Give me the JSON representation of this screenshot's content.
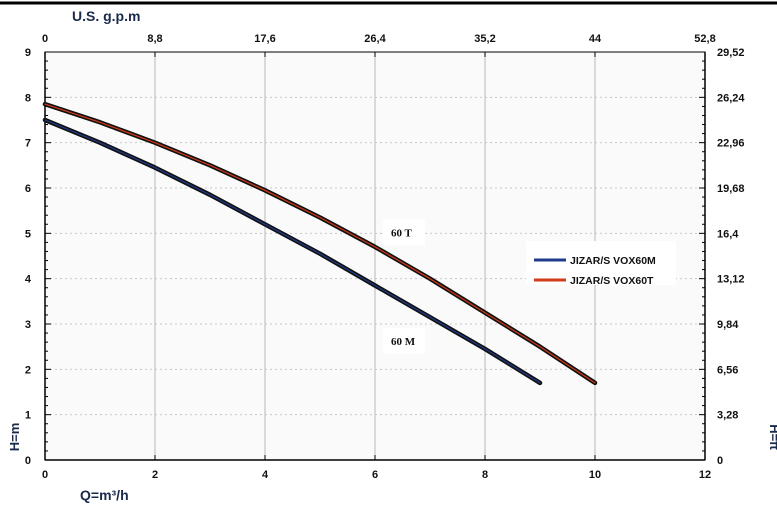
{
  "chart_data": {
    "type": "line",
    "x_axis": {
      "label": "Q=m³/h",
      "range": [
        0,
        12
      ],
      "ticks": [
        "0",
        "2",
        "4",
        "6",
        "8",
        "10",
        "12"
      ]
    },
    "x2_axis": {
      "label": "U.S. g.p.m",
      "range": [
        0,
        52.8
      ],
      "ticks": [
        "0",
        "8,8",
        "17,6",
        "26,4",
        "35,2",
        "44",
        "52,8"
      ]
    },
    "y_axis": {
      "label": "H=m",
      "range": [
        0,
        9
      ],
      "ticks": [
        "0",
        "1",
        "2",
        "3",
        "4",
        "5",
        "6",
        "7",
        "8",
        "9"
      ]
    },
    "y2_axis": {
      "label": "H=ft",
      "range": [
        0,
        29.52
      ],
      "ticks": [
        "0",
        "3,28",
        "6,56",
        "9,84",
        "13,12",
        "16,4",
        "19,68",
        "22,96",
        "26,24",
        "29,52"
      ]
    },
    "series": [
      {
        "name": "JIZAR/S VOX60M",
        "color": "#1f3a8a",
        "x": [
          0,
          1,
          2,
          3,
          4,
          5,
          6,
          7,
          8,
          9
        ],
        "y": [
          7.5,
          7.0,
          6.45,
          5.85,
          5.2,
          4.55,
          3.85,
          3.15,
          2.45,
          1.7
        ]
      },
      {
        "name": "JIZAR/S VOX60T",
        "color": "#d23a1a",
        "x": [
          0,
          1,
          2,
          3,
          4,
          5,
          6,
          7,
          8,
          9,
          10
        ],
        "y": [
          7.85,
          7.45,
          7.0,
          6.5,
          5.95,
          5.35,
          4.7,
          4.0,
          3.25,
          2.5,
          1.7
        ]
      }
    ],
    "annotations": [
      {
        "text": "60 T",
        "x": 6.4,
        "y": 5.0
      },
      {
        "text": "60 M",
        "x": 6.4,
        "y": 2.6
      }
    ],
    "legend_position": "right"
  }
}
